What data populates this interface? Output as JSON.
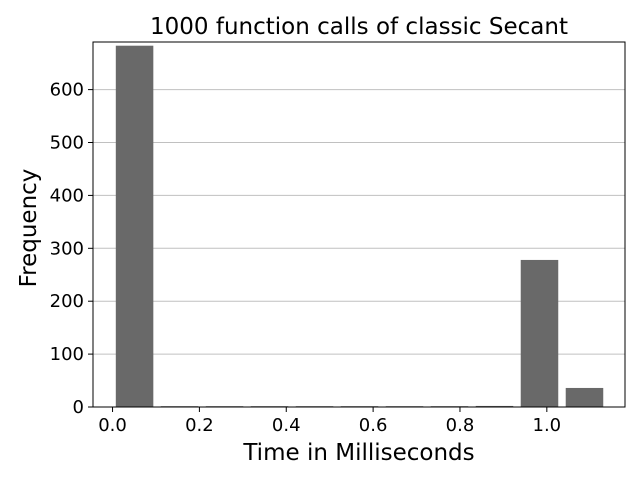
{
  "chart_data": {
    "type": "bar",
    "title": "1000 function calls of classic Secant",
    "xlabel": "Time in Milliseconds",
    "ylabel": "Frequency",
    "xlim": [
      -0.045,
      1.18
    ],
    "ylim": [
      0,
      690
    ],
    "x_ticks": [
      0.0,
      0.2,
      0.4,
      0.6,
      0.8,
      1.0
    ],
    "x_tick_labels": [
      "0.0",
      "0.2",
      "0.4",
      "0.6",
      "0.8",
      "1.0"
    ],
    "y_ticks": [
      0,
      100,
      200,
      300,
      400,
      500,
      600
    ],
    "y_tick_labels": [
      "0",
      "100",
      "200",
      "300",
      "400",
      "500",
      "600"
    ],
    "grid": "horizontal",
    "bar_color": "#696969",
    "bins": [
      {
        "x0": 0.0075,
        "x1": 0.0939,
        "value": 683
      },
      {
        "x0": 0.1111,
        "x1": 0.1975,
        "value": 0
      },
      {
        "x0": 0.2147,
        "x1": 0.3011,
        "value": 0
      },
      {
        "x0": 0.3183,
        "x1": 0.4047,
        "value": 0
      },
      {
        "x0": 0.4219,
        "x1": 0.5083,
        "value": 0
      },
      {
        "x0": 0.5255,
        "x1": 0.6119,
        "value": 0
      },
      {
        "x0": 0.6291,
        "x1": 0.7155,
        "value": 0
      },
      {
        "x0": 0.7327,
        "x1": 0.8191,
        "value": 0
      },
      {
        "x0": 0.8363,
        "x1": 0.9227,
        "value": 2
      },
      {
        "x0": 0.9399,
        "x1": 1.0263,
        "value": 278
      },
      {
        "x0": 1.0435,
        "x1": 1.1299,
        "value": 36
      }
    ]
  }
}
